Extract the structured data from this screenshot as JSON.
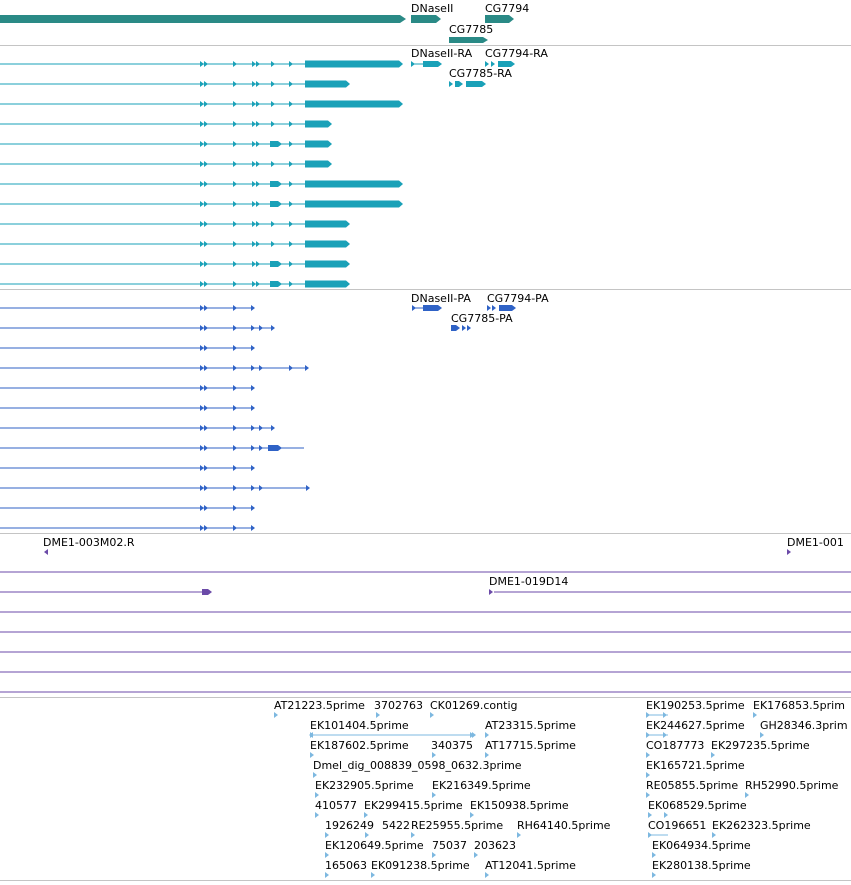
{
  "colors": {
    "gene": "#2a8a86",
    "transcript": "#1aa1b8",
    "protein": "#2f62c6",
    "clone": "#6b4aa8",
    "est": "#7db8e0",
    "divider": "#c4c4c4"
  },
  "genes_track": {
    "labels": [
      "DNaseII",
      "CG7794",
      "CG7785"
    ]
  },
  "transcripts_track": {
    "labels": [
      "DNaseII-RA",
      "CG7794-RA",
      "CG7785-RA"
    ]
  },
  "proteins_track": {
    "labels": [
      "DNaseII-PA",
      "CG7794-PA",
      "CG7785-PA"
    ]
  },
  "clones_track": {
    "labels": [
      "DME1-003M02.R",
      "DME1-001",
      "DME1-019D14"
    ]
  },
  "est_track": {
    "labels": [
      "AT21223.5prime",
      "3702763",
      "CK01269.contig",
      "EK101404.5prime",
      "AT23315.5prime",
      "EK187602.5prime",
      "340375",
      "AT17715.5prime",
      "Dmel_dig_008839_0598_0632.3prime",
      "EK232905.5prime",
      "EK216349.5prime",
      "410577",
      "EK299415.5prime",
      "EK150938.5prime",
      "1926249",
      "5422",
      "RE25955.5prime",
      "RH64140.5prime",
      "EK120649.5prime",
      "75037",
      "203623",
      "165063",
      "EK091238.5prime",
      "AT12041.5prime",
      "EK190253.5prime",
      "EK176853.5prim",
      "EK244627.5prime",
      "GH28346.3prim",
      "CO187773",
      "EK297235.5prime",
      "EK165721.5prime",
      "RE05855.5prime",
      "RH52990.5prime",
      "EK068529.5prime",
      "CO196651",
      "EK262323.5prime",
      "EK064934.5prime",
      "EK280138.5prime"
    ]
  }
}
